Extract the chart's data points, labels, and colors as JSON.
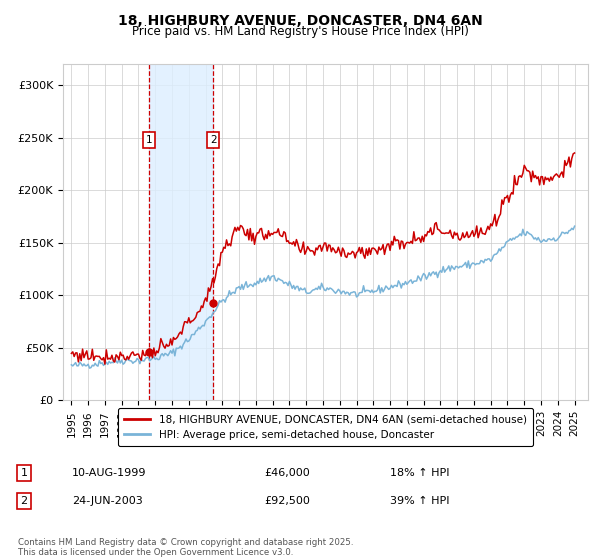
{
  "title": "18, HIGHBURY AVENUE, DONCASTER, DN4 6AN",
  "subtitle": "Price paid vs. HM Land Registry's House Price Index (HPI)",
  "sale1_label": "10-AUG-1999",
  "sale1_price": 46000,
  "sale1_price_str": "£46,000",
  "sale1_hpi_pct": "18% ↑ HPI",
  "sale2_label": "24-JUN-2003",
  "sale2_price": 92500,
  "sale2_price_str": "£92,500",
  "sale2_hpi_pct": "39% ↑ HPI",
  "legend_line1": "18, HIGHBURY AVENUE, DONCASTER, DN4 6AN (semi-detached house)",
  "legend_line2": "HPI: Average price, semi-detached house, Doncaster",
  "footer": "Contains HM Land Registry data © Crown copyright and database right 2025.\nThis data is licensed under the Open Government Licence v3.0.",
  "hpi_color": "#7ab4d8",
  "price_color": "#cc0000",
  "shade_color": "#ddeeff",
  "grid_color": "#cccccc",
  "dashed_line_color": "#cc0000",
  "ylim_max": 320000,
  "ylim_min": 0,
  "sale1_x": 1999.62,
  "sale2_x": 2003.46,
  "years": [
    1995,
    1996,
    1997,
    1998,
    1999,
    2000,
    2001,
    2002,
    2003,
    2004,
    2005,
    2006,
    2007,
    2008,
    2009,
    2010,
    2011,
    2012,
    2013,
    2014,
    2015,
    2016,
    2017,
    2018,
    2019,
    2020,
    2021,
    2022,
    2023,
    2024,
    2025
  ],
  "hpi_vals": [
    33000,
    34000,
    36000,
    38000,
    38000,
    40000,
    45000,
    58000,
    75000,
    95000,
    107000,
    112000,
    118000,
    110000,
    103000,
    107000,
    104000,
    101000,
    104000,
    108000,
    112000,
    117000,
    124000,
    127000,
    130000,
    134000,
    150000,
    160000,
    152000,
    155000,
    165000
  ],
  "red_vals": [
    44000,
    43000,
    42000,
    42000,
    44000,
    46000,
    54000,
    75000,
    92000,
    143000,
    165000,
    155000,
    162000,
    150000,
    140000,
    148000,
    143000,
    140000,
    143000,
    148000,
    152000,
    158000,
    163000,
    158000,
    158000,
    162000,
    195000,
    220000,
    210000,
    215000,
    230000
  ]
}
